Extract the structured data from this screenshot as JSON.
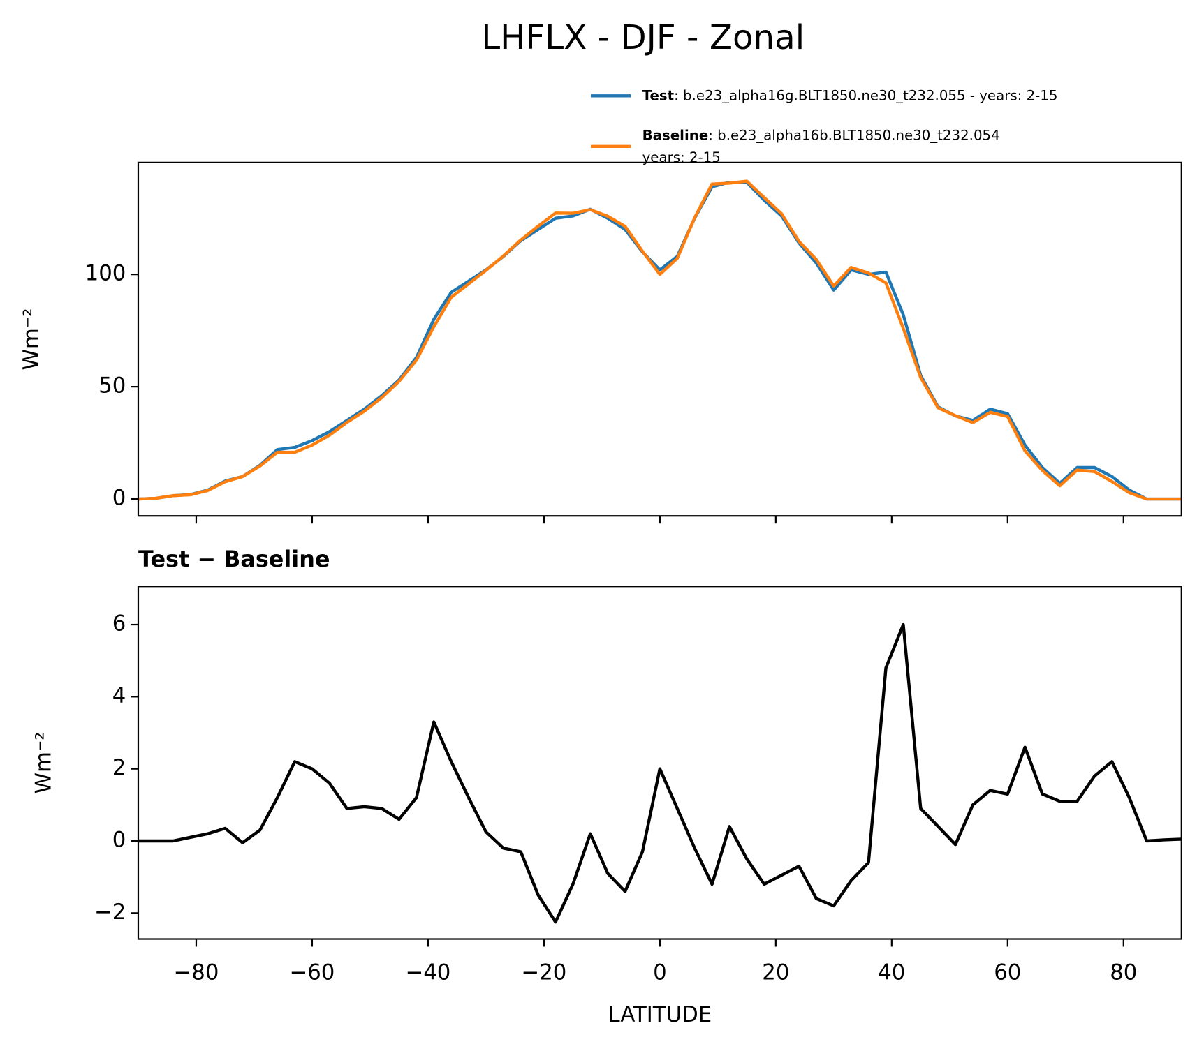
{
  "chart_data": [
    {
      "type": "line",
      "title": "LHFLX - DJF - Zonal",
      "ylabel": "Wm⁻²",
      "x": [
        -90,
        -87,
        -84,
        -81,
        -78,
        -75,
        -72,
        -69,
        -66,
        -63,
        -60,
        -57,
        -54,
        -51,
        -48,
        -45,
        -42,
        -39,
        -36,
        -33,
        -30,
        -27,
        -24,
        -21,
        -18,
        -15,
        -12,
        -9,
        -6,
        -3,
        0,
        3,
        6,
        9,
        12,
        15,
        18,
        21,
        24,
        27,
        30,
        33,
        36,
        39,
        42,
        45,
        48,
        51,
        54,
        57,
        60,
        63,
        66,
        69,
        72,
        75,
        78,
        81,
        84,
        87,
        90
      ],
      "series": [
        {
          "name": "Test",
          "legend_text": [
            ": b.e23_alpha16g.BLT1850.ne30_t232.055 - years: 2-15"
          ],
          "color": "#1f77b4",
          "values": [
            0,
            0.3,
            1.5,
            2,
            4,
            8,
            10,
            15,
            22,
            23,
            26,
            30,
            35,
            40,
            46,
            53,
            63,
            80,
            92,
            97,
            102,
            108,
            115,
            120,
            125,
            126,
            129,
            125,
            120,
            110,
            102,
            108,
            125,
            139,
            141,
            141,
            133,
            126,
            114,
            105,
            93,
            102,
            100,
            101,
            82,
            55,
            41,
            37,
            35,
            40,
            38,
            24,
            14,
            7,
            14,
            14,
            10,
            4,
            0,
            0,
            0
          ]
        },
        {
          "name": "Baseline",
          "legend_text": [
            ": b.e23_alpha16b.BLT1850.ne30_t232.054",
            "years: 2-15"
          ],
          "color": "#ff7f0e",
          "values": [
            0,
            0.3,
            1.5,
            1.9,
            3.8,
            7.7,
            10,
            14.7,
            20.8,
            20.8,
            24,
            28.4,
            34.1,
            39.1,
            45.1,
            52.4,
            61.8,
            76.7,
            89.8,
            95.8,
            101.8,
            108.2,
            115.3,
            121.5,
            127.3,
            127.2,
            128.8,
            125.9,
            121.4,
            110.3,
            100,
            107.1,
            125.2,
            140.2,
            140.6,
            141.5,
            134.2,
            127,
            114.7,
            106.6,
            94.8,
            103.1,
            100.6,
            96.2,
            76,
            54.1,
            40.6,
            37.1,
            34,
            38.6,
            36.7,
            21.4,
            12.7,
            5.9,
            12.9,
            12.2,
            7.8,
            2.8,
            0,
            0,
            0
          ]
        }
      ],
      "xlim": [
        -90,
        90
      ],
      "ylim": [
        -7.5,
        149.8
      ],
      "yticks": [
        0,
        50,
        100
      ]
    },
    {
      "type": "line",
      "title": "Test − Baseline",
      "xlabel": "LATITUDE",
      "ylabel": "Wm⁻²",
      "x": [
        -90,
        -87,
        -84,
        -81,
        -78,
        -75,
        -72,
        -69,
        -66,
        -63,
        -60,
        -57,
        -54,
        -51,
        -48,
        -45,
        -42,
        -39,
        -36,
        -33,
        -30,
        -27,
        -24,
        -21,
        -18,
        -15,
        -12,
        -9,
        -6,
        -3,
        0,
        3,
        6,
        9,
        12,
        15,
        18,
        21,
        24,
        27,
        30,
        33,
        36,
        39,
        42,
        45,
        48,
        51,
        54,
        57,
        60,
        63,
        66,
        69,
        72,
        75,
        78,
        81,
        84,
        87,
        90
      ],
      "series": [
        {
          "color": "#000000",
          "values": [
            0,
            0,
            0,
            0.1,
            0.2,
            0.35,
            -0.05,
            0.3,
            1.2,
            2.2,
            2,
            1.6,
            0.9,
            0.95,
            0.9,
            0.6,
            1.2,
            3.3,
            2.2,
            1.2,
            0.25,
            -0.2,
            -0.3,
            -1.5,
            -2.25,
            -1.2,
            0.2,
            -0.9,
            -1.4,
            -0.3,
            2,
            0.9,
            -0.2,
            -1.2,
            0.4,
            -0.5,
            -1.2,
            -0.95,
            -0.7,
            -1.6,
            -1.8,
            -1.1,
            -0.6,
            4.8,
            6,
            0.9,
            0.4,
            -0.1,
            1,
            1.4,
            1.3,
            2.6,
            1.3,
            1.1,
            1.1,
            1.8,
            2.2,
            1.2,
            0,
            0.03,
            0.05
          ]
        }
      ],
      "xlim": [
        -90,
        90
      ],
      "ylim": [
        -2.72,
        7.06
      ],
      "xticks": [
        {
          "value": -80,
          "label": "−80"
        },
        {
          "value": -60,
          "label": "−60"
        },
        {
          "value": -40,
          "label": "−40"
        },
        {
          "value": -20,
          "label": "−20"
        },
        0,
        20,
        40,
        60,
        80
      ],
      "yticks": [
        {
          "value": -2,
          "label": "−2"
        },
        0,
        2,
        4,
        6
      ]
    }
  ]
}
